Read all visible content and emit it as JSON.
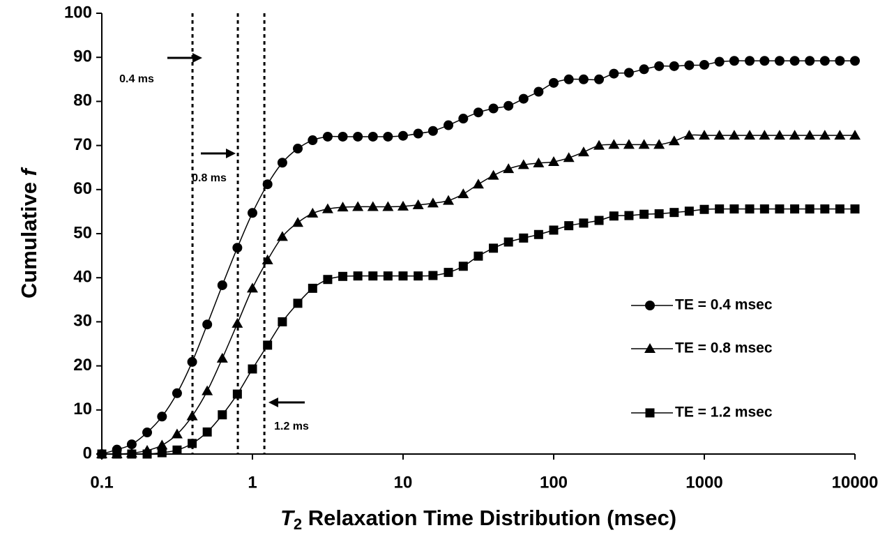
{
  "chart_data": {
    "type": "line",
    "xlabel_parts": [
      "T",
      "2",
      " Relaxation Time Distribution (msec)"
    ],
    "ylabel_parts": [
      "Cumulative ",
      "f"
    ],
    "x": [
      0.1,
      0.126,
      0.158,
      0.2,
      0.251,
      0.316,
      0.398,
      0.501,
      0.631,
      0.794,
      1,
      1.26,
      1.58,
      2,
      2.51,
      3.16,
      3.98,
      5.01,
      6.31,
      7.94,
      10,
      12.6,
      15.8,
      20,
      25.1,
      31.6,
      39.8,
      50.1,
      63.1,
      79.4,
      100,
      126,
      158,
      200,
      251,
      316,
      398,
      501,
      631,
      794,
      1000,
      1260,
      1580,
      2000,
      2510,
      3160,
      3980,
      5010,
      6310,
      7940,
      10000
    ],
    "series": [
      {
        "name": "TE = 0.4 msec",
        "color": "#000000",
        "marker": "circle",
        "values": [
          0,
          1,
          2.2,
          4.9,
          8.5,
          13.8,
          20.9,
          29.4,
          38.3,
          46.8,
          54.7,
          61.2,
          66.1,
          69.3,
          71.2,
          72,
          72,
          72,
          72,
          72,
          72.2,
          72.7,
          73.3,
          74.6,
          76.1,
          77.5,
          78.4,
          79,
          80.6,
          82.2,
          84.2,
          85,
          85,
          85,
          86.3,
          86.5,
          87.3,
          88,
          88,
          88.2,
          88.3,
          89,
          89.2,
          89.2,
          89.2,
          89.2,
          89.2,
          89.2,
          89.2,
          89.2,
          89.2
        ]
      },
      {
        "name": "TE = 0.8 msec",
        "color": "#000000",
        "marker": "triangle",
        "values": [
          0,
          0,
          0.2,
          0.8,
          2,
          4.5,
          8.6,
          14.3,
          21.7,
          29.6,
          37.6,
          44,
          49.3,
          52.5,
          54.6,
          55.6,
          56,
          56.1,
          56.1,
          56.1,
          56.2,
          56.5,
          56.9,
          57.5,
          59,
          61.2,
          63.2,
          64.7,
          65.6,
          66,
          66.3,
          67.2,
          68.5,
          70,
          70.2,
          70.2,
          70.2,
          70.2,
          71,
          72.3,
          72.3,
          72.3,
          72.3,
          72.3,
          72.3,
          72.3,
          72.3,
          72.3,
          72.3,
          72.3,
          72.3
        ]
      },
      {
        "name": "TE = 1.2 msec",
        "color": "#000000",
        "marker": "square",
        "values": [
          0,
          0,
          0,
          0,
          0.3,
          0.9,
          2.4,
          5,
          8.9,
          13.6,
          19.3,
          24.7,
          30,
          34.2,
          37.6,
          39.6,
          40.3,
          40.4,
          40.4,
          40.4,
          40.4,
          40.4,
          40.5,
          41.2,
          42.6,
          44.9,
          46.7,
          48.1,
          49,
          49.8,
          50.8,
          51.8,
          52.4,
          53,
          54,
          54.1,
          54.4,
          54.5,
          54.8,
          55.1,
          55.5,
          55.6,
          55.6,
          55.6,
          55.6,
          55.6,
          55.6,
          55.6,
          55.6,
          55.6,
          55.6
        ]
      }
    ],
    "annotations": [
      {
        "text": "0.4 ms",
        "x": 0.4
      },
      {
        "text": "0.8 ms",
        "x": 0.8
      },
      {
        "text": "1.2 ms",
        "x": 1.2
      }
    ],
    "xscale": "log",
    "xlim": [
      0.1,
      10000
    ],
    "xticks": [
      0.1,
      1,
      10,
      100,
      1000,
      10000
    ],
    "ylim": [
      0,
      100
    ],
    "yticks": [
      0,
      10,
      20,
      30,
      40,
      50,
      60,
      70,
      80,
      90,
      100
    ],
    "grid": false,
    "legend": "right"
  }
}
